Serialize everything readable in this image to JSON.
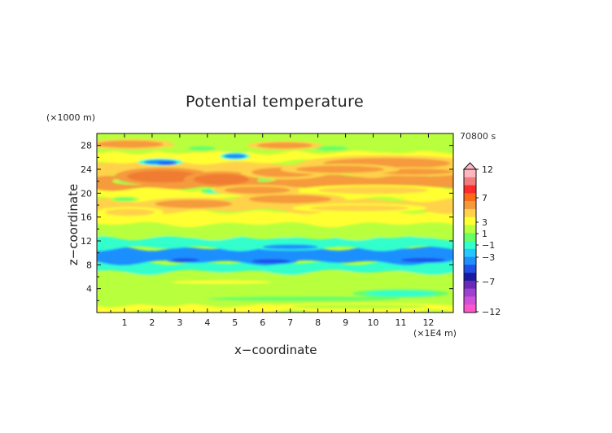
{
  "chart_data": {
    "type": "heatmap",
    "title": "Potential temperature",
    "xlabel": "x−coordinate",
    "ylabel": "z−coordinate",
    "x_unit": "(×1E4 m)",
    "y_unit": "(×1000 m)",
    "time_label": "70800 s",
    "xlim": [
      0,
      12.9
    ],
    "ylim": [
      0,
      30
    ],
    "x_ticks": [
      "1",
      "2",
      "3",
      "4",
      "5",
      "6",
      "7",
      "8",
      "9",
      "10",
      "11",
      "12"
    ],
    "y_ticks": [
      "4",
      "8",
      "12",
      "16",
      "20",
      "24",
      "28"
    ],
    "colorbar": {
      "labels": [
        "12",
        "7",
        "3",
        "1",
        "−1",
        "−3",
        "−7",
        "−12"
      ],
      "colors": [
        "#ffb6c1",
        "#f07c7c",
        "#ff2a2a",
        "#ff6a1a",
        "#f59a3c",
        "#ffd24a",
        "#ffff33",
        "#b8ff3c",
        "#66ff66",
        "#33ffcc",
        "#22c8ff",
        "#1e8fff",
        "#1e50e8",
        "#1a1aa0",
        "#6a2ab8",
        "#a040d0",
        "#d050d8",
        "#ff55cc"
      ],
      "extend_top": true
    },
    "bands": [
      {
        "z0": 0,
        "z1": 1.3,
        "value": 0.5
      },
      {
        "z0": 1.3,
        "z1": 3.5,
        "value": -0.3
      },
      {
        "z0": 3.5,
        "z1": 5.2,
        "value": -0.8
      },
      {
        "z0": 5.2,
        "z1": 6.8,
        "value": -0.4
      },
      {
        "z0": 6.8,
        "z1": 8.4,
        "value": -2.2
      },
      {
        "z0": 8.4,
        "z1": 10.8,
        "value": -2.8
      },
      {
        "z0": 10.8,
        "z1": 12.6,
        "value": -1.8
      },
      {
        "z0": 12.6,
        "z1": 14.8,
        "value": -0.6
      },
      {
        "z0": 14.8,
        "z1": 17.0,
        "value": 0.4
      },
      {
        "z0": 17.0,
        "z1": 19.0,
        "value": 1.5
      },
      {
        "z0": 19.0,
        "z1": 20.8,
        "value": 0.8
      },
      {
        "z0": 20.8,
        "z1": 23.0,
        "value": 2.0
      },
      {
        "z0": 23.0,
        "z1": 25.2,
        "value": 1.2
      },
      {
        "z0": 25.2,
        "z1": 27.0,
        "value": 0.6
      },
      {
        "z0": 27.0,
        "z1": 30.0,
        "value": -0.4
      }
    ],
    "features": [
      {
        "x": 6.3,
        "z": 8.6,
        "rx": 0.7,
        "rz": 0.35,
        "value": -4.0
      },
      {
        "x": 3.2,
        "z": 8.8,
        "rx": 0.5,
        "rz": 0.3,
        "value": -4.0
      },
      {
        "x": 11.8,
        "z": 8.8,
        "rx": 0.8,
        "rz": 0.35,
        "value": -4.0
      },
      {
        "x": 7.0,
        "z": 11.0,
        "rx": 1.0,
        "rz": 0.4,
        "value": -3.0
      },
      {
        "x": 2.3,
        "z": 25.2,
        "rx": 0.6,
        "rz": 0.4,
        "value": -3.0
      },
      {
        "x": 2.5,
        "z": 25.0,
        "rx": 0.3,
        "rz": 0.2,
        "value": -4.0
      },
      {
        "x": 5.0,
        "z": 26.2,
        "rx": 0.4,
        "rz": 0.4,
        "value": -3.0
      },
      {
        "x": 4.3,
        "z": 20.3,
        "rx": 0.4,
        "rz": 0.3,
        "value": -2.0
      },
      {
        "x": 1.5,
        "z": 22.0,
        "rx": 0.7,
        "rz": 0.4,
        "value": -1.5
      },
      {
        "x": 3.8,
        "z": 27.5,
        "rx": 0.5,
        "rz": 0.4,
        "value": -1.5
      },
      {
        "x": 8.5,
        "z": 27.5,
        "rx": 0.6,
        "rz": 0.4,
        "value": -1.5
      },
      {
        "x": 1.0,
        "z": 19.0,
        "rx": 0.4,
        "rz": 0.3,
        "value": -1.5
      },
      {
        "x": 6.0,
        "z": 22.5,
        "rx": 0.4,
        "rz": 0.4,
        "value": -1.5
      },
      {
        "x": 2.4,
        "z": 22.8,
        "rx": 1.3,
        "rz": 1.0,
        "value": 3.0
      },
      {
        "x": 4.5,
        "z": 22.3,
        "rx": 1.0,
        "rz": 0.9,
        "value": 3.2
      },
      {
        "x": 6.8,
        "z": 23.5,
        "rx": 1.2,
        "rz": 0.8,
        "value": 2.8
      },
      {
        "x": 10.5,
        "z": 25.0,
        "rx": 2.3,
        "rz": 0.9,
        "value": 2.6
      },
      {
        "x": 11.5,
        "z": 23.6,
        "rx": 1.4,
        "rz": 0.5,
        "value": 2.2
      },
      {
        "x": 8.8,
        "z": 24.0,
        "rx": 1.6,
        "rz": 0.6,
        "value": 2.4
      },
      {
        "x": 1.2,
        "z": 28.2,
        "rx": 1.2,
        "rz": 0.6,
        "value": 2.2
      },
      {
        "x": 6.8,
        "z": 28.0,
        "rx": 1.0,
        "rz": 0.5,
        "value": 2.0
      },
      {
        "x": 3.5,
        "z": 18.2,
        "rx": 1.4,
        "rz": 0.7,
        "value": 2.2
      },
      {
        "x": 7.0,
        "z": 19.0,
        "rx": 1.5,
        "rz": 0.7,
        "value": 2.2
      },
      {
        "x": 1.2,
        "z": 16.8,
        "rx": 0.9,
        "rz": 0.6,
        "value": 1.8
      },
      {
        "x": 5.8,
        "z": 20.5,
        "rx": 1.2,
        "rz": 0.6,
        "value": 2.5
      },
      {
        "x": 10.0,
        "z": 20.5,
        "rx": 2.0,
        "rz": 0.6,
        "value": 1.2
      },
      {
        "x": 9.5,
        "z": 17.5,
        "rx": 1.8,
        "rz": 0.5,
        "value": 1.2
      },
      {
        "x": 7.5,
        "z": 2.3,
        "rx": 3.5,
        "rz": 0.4,
        "value": -1.5
      },
      {
        "x": 11.0,
        "z": 3.2,
        "rx": 1.3,
        "rz": 0.5,
        "value": -2.0
      },
      {
        "x": 4.5,
        "z": 5.1,
        "rx": 1.8,
        "rz": 0.3,
        "value": 0.5
      },
      {
        "x": 9.5,
        "z": 1.0,
        "rx": 2.5,
        "rz": 0.4,
        "value": -0.8
      }
    ]
  }
}
